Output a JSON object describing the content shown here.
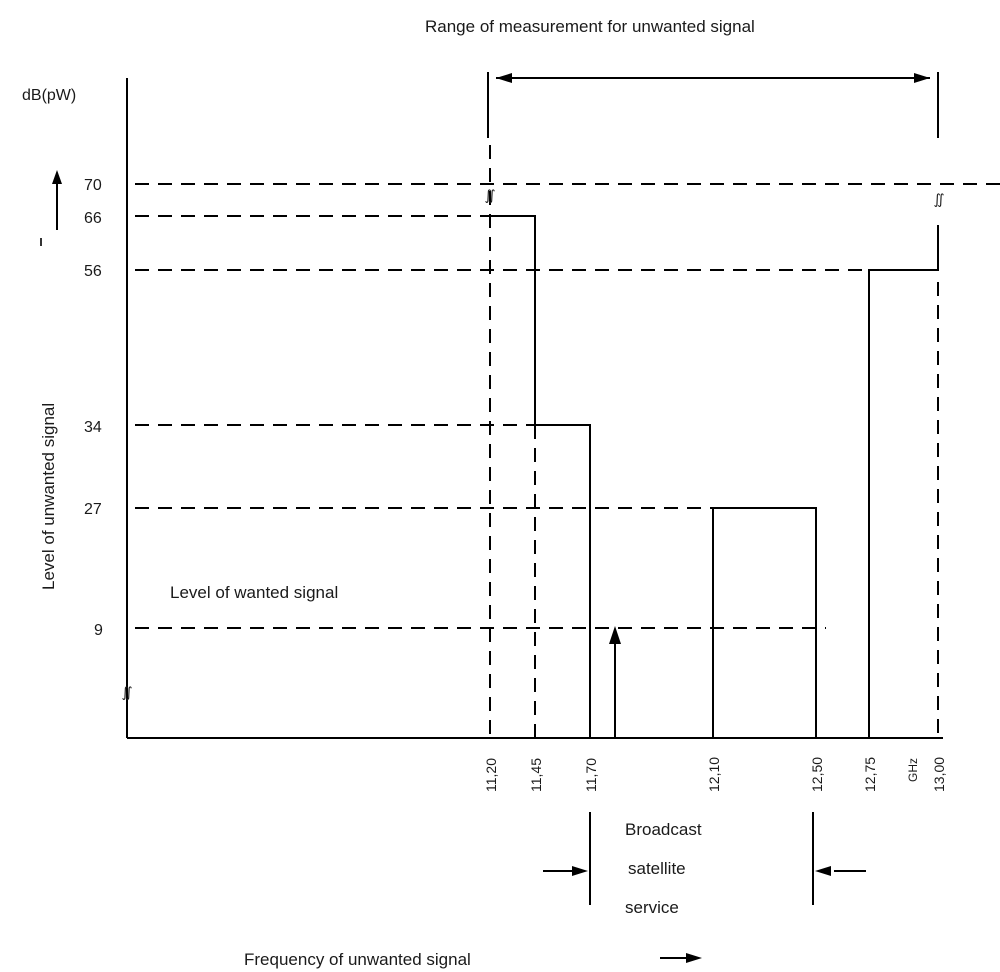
{
  "diagram": {
    "top_label": "Range of measurement for unwanted signal",
    "unit_label": "dB(pW)",
    "y_axis_label": "Level of unwanted signal",
    "wanted_label": "Level of wanted signal",
    "x_axis_label": "Frequency of unwanted signal",
    "band_label_lines": [
      "Broadcast",
      "satellite",
      "service"
    ],
    "y_ticks": [
      "70",
      "66",
      "56",
      "34",
      "27",
      "9"
    ],
    "x_ticks": [
      "11,20",
      "11,45",
      "11,70",
      "12,10",
      "12,50",
      "12,75",
      "GHz",
      "13,00"
    ],
    "break_mark": "∬"
  }
}
